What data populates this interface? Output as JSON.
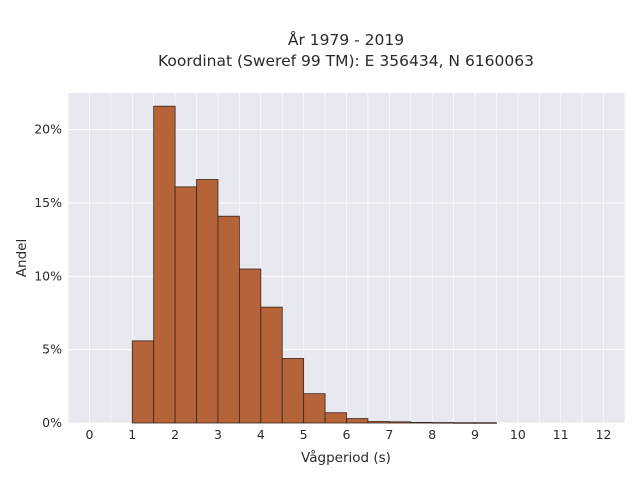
{
  "chart_data": {
    "type": "bar",
    "title": [
      "År 1979 - 2019",
      "Koordinat (Sweref 99 TM): E 356434, N 6160063"
    ],
    "xlabel": "Vågperiod (s)",
    "ylabel": "Andel",
    "xlim": [
      -0.5,
      12.5
    ],
    "ylim": [
      0,
      0.225
    ],
    "x_ticks": [
      0,
      1,
      2,
      3,
      4,
      5,
      6,
      7,
      8,
      9,
      10,
      11,
      12
    ],
    "x_tick_labels": [
      "0",
      "1",
      "2",
      "3",
      "4",
      "5",
      "6",
      "7",
      "8",
      "9",
      "10",
      "11",
      "12"
    ],
    "y_ticks": [
      0,
      0.05,
      0.1,
      0.15,
      0.2
    ],
    "y_tick_labels": [
      "0%",
      "5%",
      "10%",
      "15%",
      "20%"
    ],
    "bin_width": 0.5,
    "bins": [
      {
        "start": 1.0,
        "value": 0.056
      },
      {
        "start": 1.5,
        "value": 0.216
      },
      {
        "start": 2.0,
        "value": 0.161
      },
      {
        "start": 2.5,
        "value": 0.166
      },
      {
        "start": 3.0,
        "value": 0.141
      },
      {
        "start": 3.5,
        "value": 0.105
      },
      {
        "start": 4.0,
        "value": 0.079
      },
      {
        "start": 4.5,
        "value": 0.044
      },
      {
        "start": 5.0,
        "value": 0.02
      },
      {
        "start": 5.5,
        "value": 0.007
      },
      {
        "start": 6.0,
        "value": 0.003
      },
      {
        "start": 6.5,
        "value": 0.001
      },
      {
        "start": 7.0,
        "value": 0.0008
      },
      {
        "start": 7.5,
        "value": 0.0004
      },
      {
        "start": 8.0,
        "value": 0.0003
      },
      {
        "start": 8.5,
        "value": 0.0002
      },
      {
        "start": 9.0,
        "value": 0.0002
      }
    ],
    "grid": true,
    "colors": {
      "bar_fill": "#b5643a",
      "bar_edge": "#3b2418",
      "plot_bg": "#e8e8f0",
      "grid": "#ffffff"
    }
  }
}
